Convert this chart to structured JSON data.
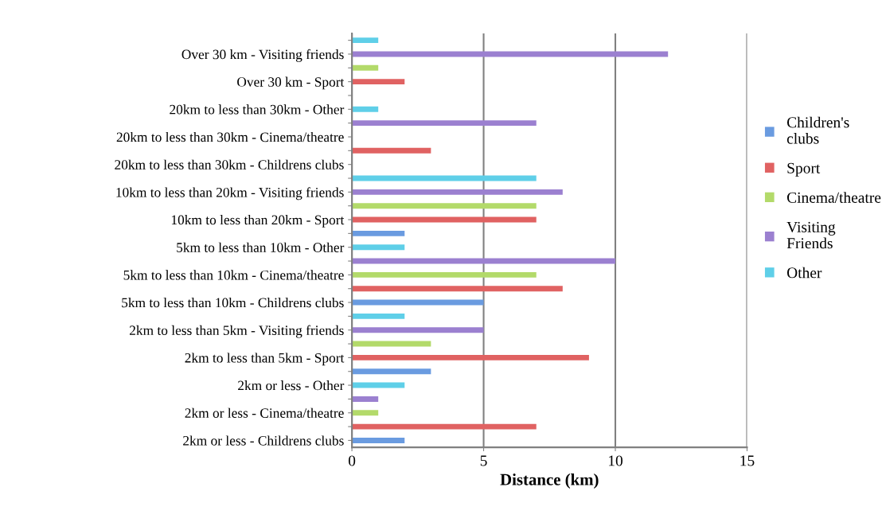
{
  "chart_data": {
    "type": "bar",
    "orientation": "horizontal",
    "xlabel": "Distance (km)",
    "categories": [
      null,
      "Over 30 km - Visiting friends",
      null,
      "Over 30 km - Sport",
      null,
      "20km to less than 30km - Other",
      null,
      "20km to less than 30km - Cinema/theatre",
      null,
      "20km to less than 30km - Childrens clubs",
      null,
      "10km to less than 20km - Visiting friends",
      null,
      "10km to less than 20km - Sport",
      null,
      "5km to less than 10km - Other",
      null,
      "5km to less than 10km - Cinema/theatre",
      null,
      "5km to less than 10km - Childrens clubs",
      null,
      "2km to less than 5km - Visiting friends",
      null,
      "2km to less than 5km - Sport",
      null,
      "2km or less - Other",
      null,
      "2km or less - Cinema/theatre",
      null,
      "2km or less - Childrens clubs"
    ],
    "series": [
      {
        "name": "Children's clubs",
        "color": "#6a9be0",
        "values": [
          null,
          null,
          null,
          null,
          null,
          null,
          null,
          null,
          null,
          null,
          null,
          null,
          null,
          null,
          2,
          null,
          null,
          null,
          null,
          5,
          null,
          null,
          null,
          null,
          3,
          null,
          null,
          null,
          null,
          2
        ]
      },
      {
        "name": "Sport",
        "color": "#e06262",
        "values": [
          null,
          null,
          null,
          2,
          null,
          null,
          null,
          null,
          3,
          null,
          null,
          null,
          null,
          7,
          null,
          null,
          null,
          null,
          8,
          null,
          null,
          null,
          null,
          9,
          null,
          null,
          null,
          null,
          7,
          null
        ]
      },
      {
        "name": "Cinema/theatre",
        "color": "#b3da6a",
        "values": [
          null,
          null,
          1,
          null,
          null,
          null,
          null,
          null,
          null,
          null,
          null,
          null,
          7,
          null,
          null,
          null,
          null,
          7,
          null,
          null,
          null,
          null,
          3,
          null,
          null,
          null,
          null,
          1,
          null,
          null
        ]
      },
      {
        "name": "Visiting Friends",
        "color": "#9b80d0",
        "values": [
          null,
          12,
          null,
          null,
          null,
          null,
          7,
          null,
          null,
          null,
          null,
          8,
          null,
          null,
          null,
          null,
          10,
          null,
          null,
          null,
          null,
          5,
          null,
          null,
          null,
          null,
          1,
          null,
          null,
          null
        ]
      },
      {
        "name": "Other",
        "color": "#5fcfe8",
        "values": [
          1,
          null,
          null,
          null,
          null,
          1,
          null,
          null,
          null,
          null,
          7,
          null,
          null,
          null,
          null,
          2,
          null,
          null,
          null,
          null,
          2,
          null,
          null,
          null,
          null,
          2,
          null,
          null,
          null,
          null
        ]
      }
    ],
    "xlim": [
      0,
      15
    ],
    "xticks": [
      0,
      5,
      10,
      15
    ],
    "grid": "x",
    "legend": "right"
  }
}
